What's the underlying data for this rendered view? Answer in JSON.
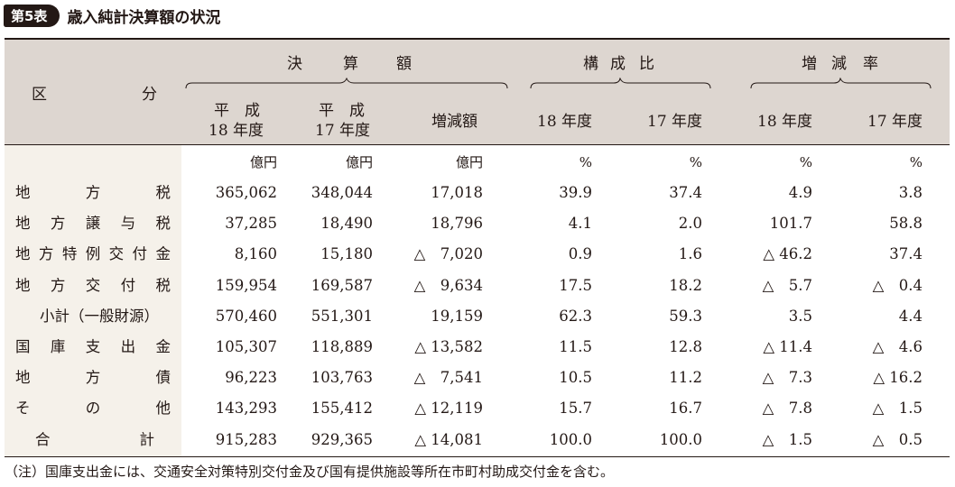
{
  "badge": "第5表",
  "title": "歳入純計決算額の状況",
  "header": {
    "kubun": [
      "区",
      "分"
    ],
    "group_kessan": [
      "決",
      "算",
      "額"
    ],
    "group_kousei": [
      "構",
      "成",
      "比"
    ],
    "group_zougen": [
      "増",
      "減",
      "率"
    ],
    "h18_top": "平　成",
    "h18_bot": "18 年度",
    "h17_top": "平　成",
    "h17_bot": "17 年度",
    "zougengaku": "増減額",
    "k18": "18 年度",
    "k17": "17 年度",
    "z18": "18 年度",
    "z17": "17 年度"
  },
  "units": [
    "億円",
    "億円",
    "億円",
    "%",
    "%",
    "%",
    "%"
  ],
  "rows": [
    {
      "label": [
        "地",
        "方",
        "税"
      ],
      "values": [
        "365,062",
        "348,044",
        "17,018",
        "39.9",
        "37.4",
        "4.9",
        "3.8"
      ]
    },
    {
      "label": [
        "地",
        "方",
        "譲",
        "与",
        "税"
      ],
      "values": [
        "37,285",
        "18,490",
        "18,796",
        "4.1",
        "2.0",
        "101.7",
        "58.8"
      ]
    },
    {
      "label": [
        "地",
        "方",
        "特",
        "例",
        "交",
        "付",
        "金"
      ],
      "values": [
        "8,160",
        "15,180",
        "△　7,020",
        "0.9",
        "1.6",
        "△ 46.2",
        "37.4"
      ]
    },
    {
      "label": [
        "地",
        "方",
        "交",
        "付",
        "税"
      ],
      "values": [
        "159,954",
        "169,587",
        "△　9,634",
        "17.5",
        "18.2",
        "△　5.7",
        "△　0.4"
      ]
    },
    {
      "label": [
        "小計（一般財源）"
      ],
      "sub": true,
      "values": [
        "570,460",
        "551,301",
        "19,159",
        "62.3",
        "59.3",
        "3.5",
        "4.4"
      ]
    },
    {
      "label": [
        "国",
        "庫",
        "支",
        "出",
        "金"
      ],
      "values": [
        "105,307",
        "118,889",
        "△ 13,582",
        "11.5",
        "12.8",
        "△ 11.4",
        "△　4.6"
      ]
    },
    {
      "label": [
        "地",
        "方",
        "債"
      ],
      "values": [
        "96,223",
        "103,763",
        "△　7,541",
        "10.5",
        "11.2",
        "△　7.3",
        "△ 16.2"
      ]
    },
    {
      "label": [
        "そ",
        "の",
        "他"
      ],
      "values": [
        "143,293",
        "155,412",
        "△ 12,119",
        "15.7",
        "16.7",
        "△　7.8",
        "△　1.5"
      ]
    },
    {
      "label": [
        "合",
        "計"
      ],
      "values": [
        "915,283",
        "929,365",
        "△ 14,081",
        "100.0",
        "100.0",
        "△　1.5",
        "△　0.5"
      ]
    }
  ],
  "note": "（注）国庫支出金には、交通安全対策特別交付金及び国有提供施設等所在市町村助成交付金を含む。"
}
